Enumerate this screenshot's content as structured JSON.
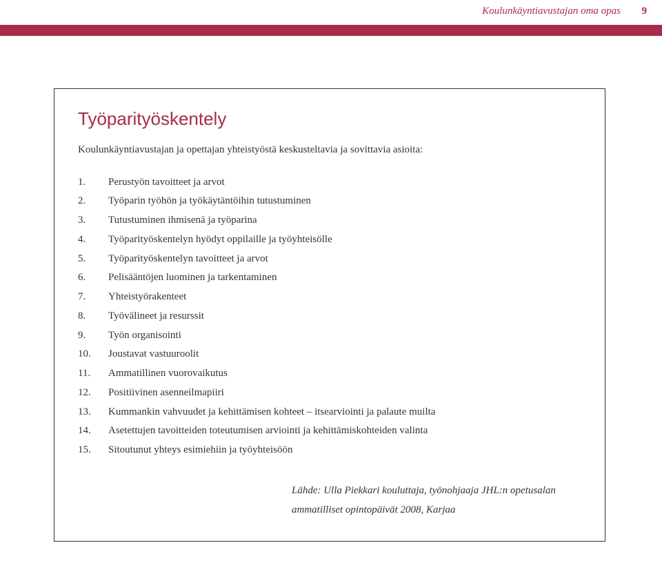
{
  "header": {
    "title": "Koulunkäyntiavustajan oma opas",
    "pageNumber": "9"
  },
  "box": {
    "title": "Työparityöskentely",
    "intro": "Koulunkäyntiavustajan ja opettajan yhteistyöstä keskusteltavia ja sovittavia asioita:",
    "items": [
      "Perustyön tavoitteet ja arvot",
      "Työparin työhön ja työkäytäntöihin tutustuminen",
      "Tutustuminen ihmisenä ja työparina",
      "Työparityöskentelyn hyödyt oppilaille ja työyhteisölle",
      "Työparityöskentelyn tavoitteet ja arvot",
      "Pelisääntöjen luominen ja tarkentaminen",
      "Yhteistyörakenteet",
      "Työvälineet ja resurssit",
      "Työn organisointi",
      "Joustavat vastuuroolit",
      "Ammatillinen vuorovaikutus",
      "Positiivinen asenneilmapiiri",
      "Kummankin vahvuudet ja kehittämisen kohteet – itsearviointi ja palaute muilta",
      "Asetettujen tavoitteiden toteutumisen arviointi ja kehittämiskohteiden valinta",
      "Sitoutunut yhteys esimiehiin ja työyhteisöön"
    ],
    "source": "Lähde: Ulla Piekkari kouluttaja, työnohjaaja JHL:n opetusalan ammatilliset opintopäivät 2008, Karjaa"
  },
  "colors": {
    "accent": "#a72b4a",
    "text": "#333333",
    "background": "#ffffff",
    "border": "#333333"
  },
  "typography": {
    "title_fontsize": 26,
    "body_fontsize": 15,
    "header_fontsize": 15,
    "line_height": 1.85
  }
}
